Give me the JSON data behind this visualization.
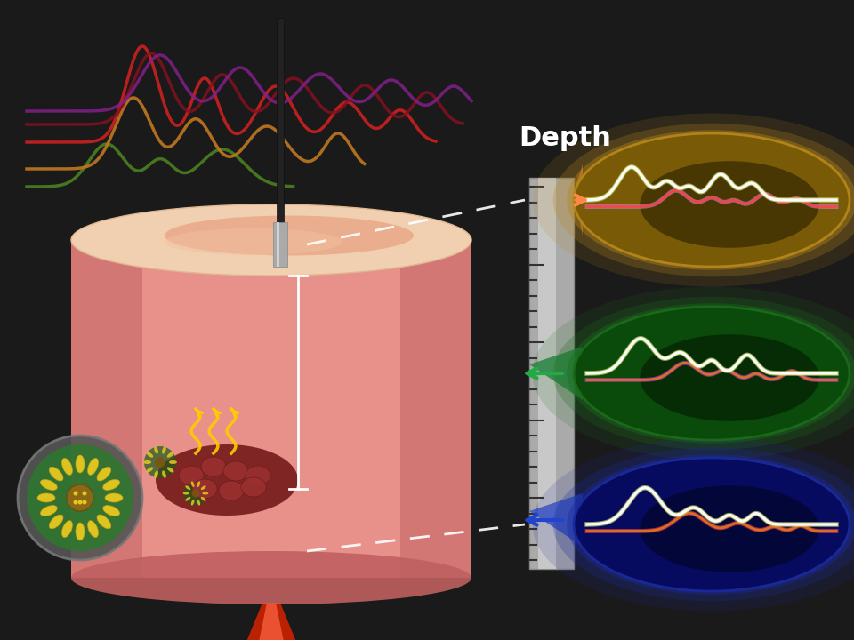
{
  "bg_color": "#1a1a1a",
  "title": "Depth",
  "title_color": "#ffffff",
  "tissue_color_top": "#f2c4b5",
  "tissue_color_body": "#e8a090",
  "tissue_color_dark": "#c87060",
  "ruler_color": "#c0c0c0",
  "probe_color": "#888888",
  "lesion_color": "#8B3030",
  "ellipse1_color": "#b5861a",
  "ellipse2_color": "#2a6b2a",
  "ellipse3_color": "#1a2a8b"
}
